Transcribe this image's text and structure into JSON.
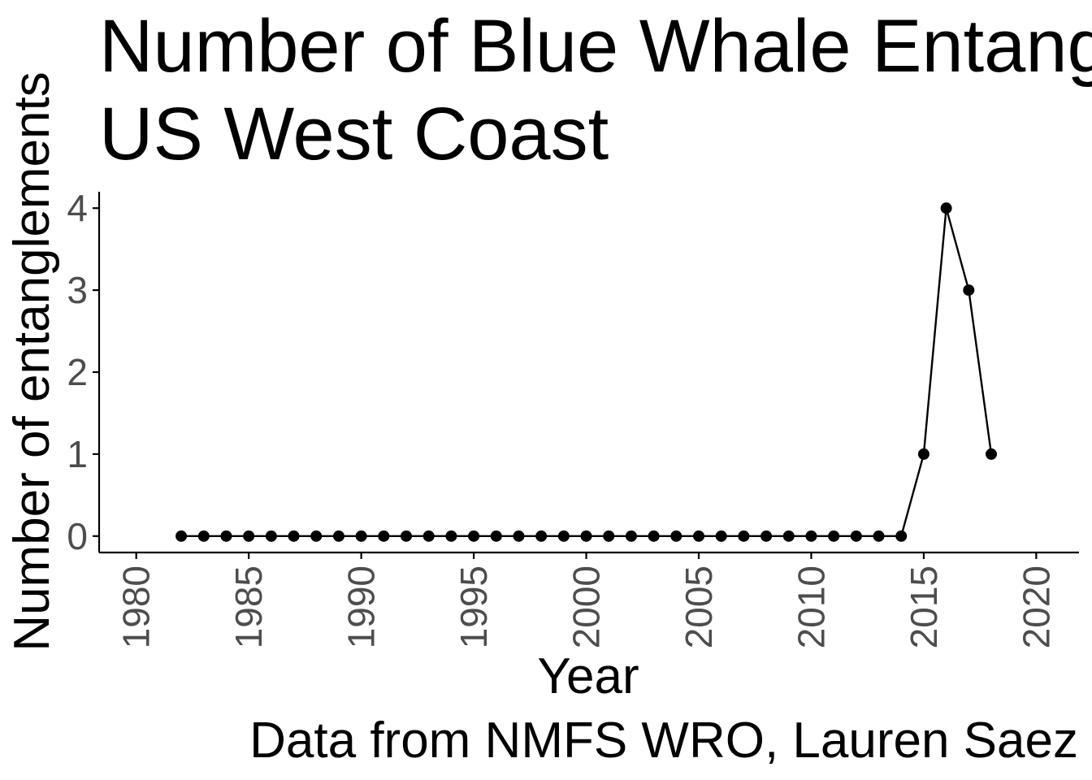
{
  "chart_data": {
    "type": "line",
    "title": "Number of Blue Whale Entanglements on the US West Coast",
    "title_lines": [
      "Number of Blue Whale Entanglements on the",
      "US West Coast"
    ],
    "xlabel": "Year",
    "ylabel": "Number of entanglements",
    "caption": "Data from NMFS WRO, Lauren Saez",
    "x": [
      1982,
      1983,
      1984,
      1985,
      1986,
      1987,
      1988,
      1989,
      1990,
      1991,
      1992,
      1993,
      1994,
      1995,
      1996,
      1997,
      1998,
      1999,
      2000,
      2001,
      2002,
      2003,
      2004,
      2005,
      2006,
      2007,
      2008,
      2009,
      2010,
      2011,
      2012,
      2013,
      2014,
      2015,
      2016,
      2017,
      2018
    ],
    "series": [
      {
        "values": [
          0,
          0,
          0,
          0,
          0,
          0,
          0,
          0,
          0,
          0,
          0,
          0,
          0,
          0,
          0,
          0,
          0,
          0,
          0,
          0,
          0,
          0,
          0,
          0,
          0,
          0,
          0,
          0,
          0,
          0,
          0,
          0,
          0,
          1,
          4,
          3,
          1
        ]
      }
    ],
    "xlim": [
      1978.35,
      1982.0
    ],
    "xlim_full": [
      1978.35,
      2021.9
    ],
    "ylim": [
      -0.2,
      4.2
    ],
    "xticks": [
      "1980",
      "1985",
      "1990",
      "1995",
      "2000",
      "2005",
      "2010",
      "2015",
      "2020"
    ],
    "yticks": [
      "0",
      "1",
      "2",
      "3",
      "4"
    ],
    "grid": false,
    "legend": "none",
    "colors": {
      "line": "#000000",
      "points": "#000000",
      "axis": "#000000",
      "tick_labels": "#4d4d4d",
      "background": "#ffffff"
    }
  }
}
